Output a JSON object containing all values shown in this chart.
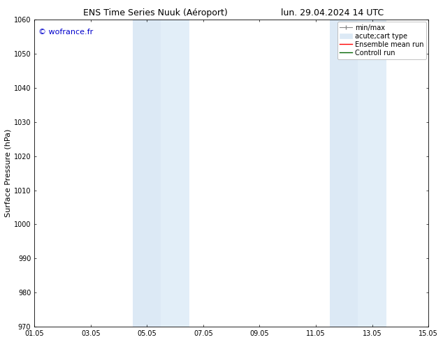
{
  "title_left": "ENS Time Series Nuuk (Aéroport)",
  "title_right": "lun. 29.04.2024 14 UTC",
  "ylabel": "Surface Pressure (hPa)",
  "ylim": [
    970,
    1060
  ],
  "yticks": [
    970,
    980,
    990,
    1000,
    1010,
    1020,
    1030,
    1040,
    1050,
    1060
  ],
  "xtick_labels": [
    "01.05",
    "03.05",
    "05.05",
    "07.05",
    "09.05",
    "11.05",
    "13.05",
    "15.05"
  ],
  "xtick_positions": [
    0,
    2,
    4,
    6,
    8,
    10,
    12,
    14
  ],
  "xlim": [
    0,
    14
  ],
  "shaded_regions": [
    {
      "x_start": 3.5,
      "x_end": 4.5,
      "color": "#dce9f5"
    },
    {
      "x_start": 4.5,
      "x_end": 5.5,
      "color": "#e2eef8"
    },
    {
      "x_start": 10.5,
      "x_end": 11.5,
      "color": "#dce9f5"
    },
    {
      "x_start": 11.5,
      "x_end": 12.5,
      "color": "#e2eef8"
    }
  ],
  "watermark": "© wofrance.fr",
  "watermark_color": "#0000cc",
  "background_color": "#ffffff",
  "plot_bg_color": "#ffffff",
  "title_fontsize": 9,
  "axis_label_fontsize": 8,
  "tick_fontsize": 7,
  "watermark_fontsize": 8,
  "legend_fontsize": 7
}
